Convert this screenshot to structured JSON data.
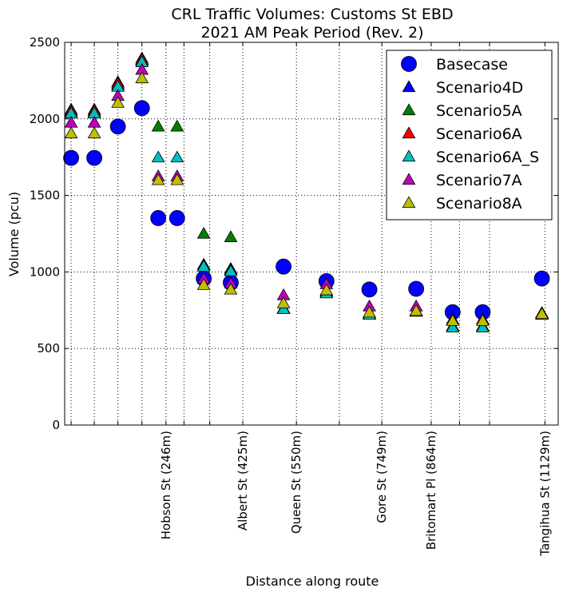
{
  "chart_data": {
    "type": "scatter",
    "title": "CRL Traffic Volumes: Customs St EBD",
    "subtitle": "2021 AM Peak Period (Rev. 2)",
    "xlabel": "Distance along route",
    "ylabel": "Volume (pcu)",
    "xlim": [
      10,
      1160
    ],
    "ylim": [
      0,
      2500
    ],
    "yticks": [
      0,
      500,
      1000,
      1500,
      2000,
      2500
    ],
    "grid": true,
    "grid_style": "dotted",
    "legend_position": "top-right",
    "x_gridlines": [
      25,
      79,
      134,
      190,
      246,
      288,
      348,
      425,
      550,
      650,
      749,
      864,
      930,
      1000,
      1129
    ],
    "x_tick_labels": [
      {
        "x": 246,
        "label": "Hobson St (246m)"
      },
      {
        "x": 425,
        "label": "Albert St (425m)"
      },
      {
        "x": 550,
        "label": "Queen St (550m)"
      },
      {
        "x": 749,
        "label": "Gore St (749m)"
      },
      {
        "x": 864,
        "label": "Britomart Pl (864m)"
      },
      {
        "x": 1129,
        "label": "Tangihua St (1129m)"
      }
    ],
    "series": [
      {
        "name": "Basecase",
        "marker": "circle",
        "color": "#0000ff",
        "points": [
          [
            25,
            1745
          ],
          [
            79,
            1745
          ],
          [
            134,
            1950
          ],
          [
            190,
            2070
          ],
          [
            228,
            1352
          ],
          [
            272,
            1352
          ],
          [
            334,
            957
          ],
          [
            397,
            930
          ],
          [
            520,
            1035
          ],
          [
            620,
            940
          ],
          [
            720,
            885
          ],
          [
            829,
            890
          ],
          [
            914,
            737
          ],
          [
            984,
            737
          ],
          [
            1122,
            957
          ]
        ]
      },
      {
        "name": "Scenario4D",
        "marker": "triangle",
        "color": "#0000ff",
        "points": [
          [
            25,
            2060
          ],
          [
            79,
            2060
          ],
          [
            134,
            2240
          ],
          [
            190,
            2395
          ],
          [
            334,
            1048
          ],
          [
            397,
            1020
          ],
          [
            520,
            760
          ],
          [
            620,
            870
          ],
          [
            720,
            725
          ],
          [
            829,
            745
          ],
          [
            914,
            645
          ],
          [
            984,
            645
          ],
          [
            1122,
            730
          ]
        ]
      },
      {
        "name": "Scenario5A",
        "marker": "triangle",
        "color": "#008000",
        "points": [
          [
            25,
            2040
          ],
          [
            79,
            2040
          ],
          [
            134,
            2220
          ],
          [
            190,
            2380
          ],
          [
            228,
            1950
          ],
          [
            272,
            1950
          ],
          [
            334,
            1250
          ],
          [
            397,
            1227
          ],
          [
            520,
            762
          ],
          [
            620,
            870
          ],
          [
            720,
            725
          ],
          [
            829,
            745
          ],
          [
            914,
            645
          ],
          [
            984,
            645
          ],
          [
            1122,
            732
          ]
        ]
      },
      {
        "name": "Scenario6A",
        "marker": "triangle",
        "color": "#ff0000",
        "points": [
          [
            25,
            2050
          ],
          [
            79,
            2050
          ],
          [
            134,
            2230
          ],
          [
            190,
            2385
          ],
          [
            334,
            1040
          ],
          [
            397,
            1012
          ],
          [
            520,
            762
          ],
          [
            620,
            870
          ],
          [
            720,
            725
          ],
          [
            829,
            745
          ],
          [
            914,
            645
          ],
          [
            984,
            645
          ],
          [
            1122,
            730
          ]
        ]
      },
      {
        "name": "Scenario6A_S",
        "marker": "triangle",
        "color": "#00bfbf",
        "points": [
          [
            25,
            2035
          ],
          [
            79,
            2035
          ],
          [
            134,
            2210
          ],
          [
            190,
            2370
          ],
          [
            228,
            1748
          ],
          [
            272,
            1748
          ],
          [
            334,
            1035
          ],
          [
            397,
            1005
          ],
          [
            520,
            758
          ],
          [
            620,
            860
          ],
          [
            720,
            720
          ],
          [
            829,
            740
          ],
          [
            914,
            638
          ],
          [
            984,
            638
          ],
          [
            1122,
            728
          ]
        ]
      },
      {
        "name": "Scenario7A",
        "marker": "triangle",
        "color": "#bf00bf",
        "points": [
          [
            25,
            1975
          ],
          [
            79,
            1975
          ],
          [
            134,
            2150
          ],
          [
            190,
            2320
          ],
          [
            228,
            1625
          ],
          [
            272,
            1625
          ],
          [
            334,
            955
          ],
          [
            397,
            925
          ],
          [
            520,
            848
          ],
          [
            620,
            920
          ],
          [
            720,
            775
          ],
          [
            829,
            775
          ],
          [
            914,
            690
          ],
          [
            984,
            690
          ],
          [
            1122,
            720
          ]
        ]
      },
      {
        "name": "Scenario8A",
        "marker": "triangle",
        "color": "#bfbf00",
        "points": [
          [
            25,
            1905
          ],
          [
            79,
            1905
          ],
          [
            134,
            2105
          ],
          [
            190,
            2265
          ],
          [
            228,
            1600
          ],
          [
            272,
            1600
          ],
          [
            334,
            915
          ],
          [
            397,
            885
          ],
          [
            520,
            795
          ],
          [
            620,
            880
          ],
          [
            720,
            735
          ],
          [
            829,
            745
          ],
          [
            914,
            680
          ],
          [
            984,
            680
          ],
          [
            1122,
            725
          ]
        ]
      }
    ]
  }
}
